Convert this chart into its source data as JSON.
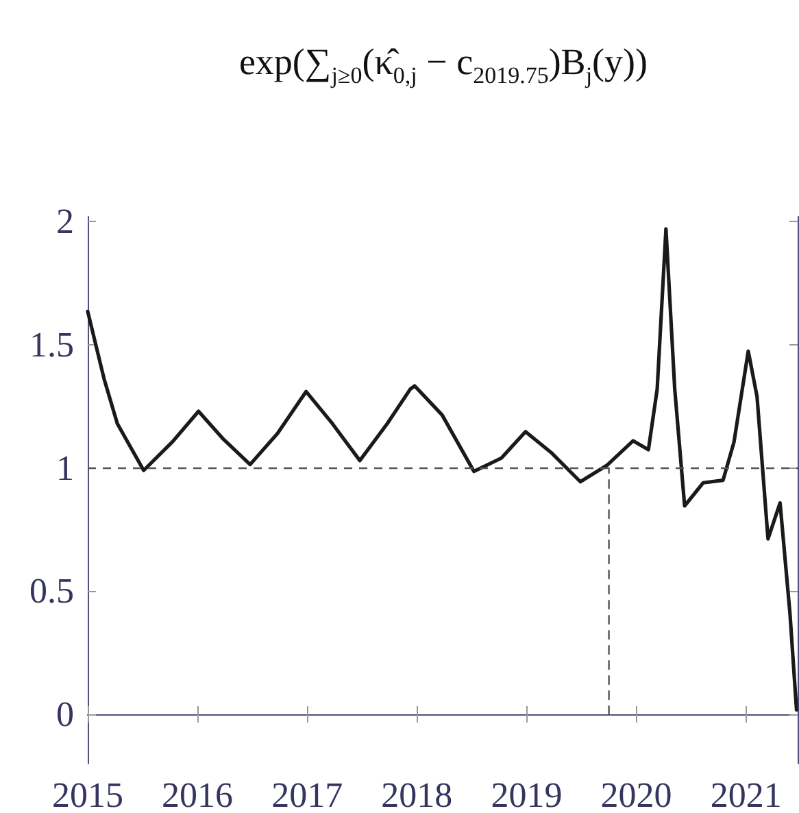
{
  "chart_data": {
    "type": "line",
    "title": "exp(∑$_{j≥0}$(κ̂$_{0,j}$ − c$_{2019.75}$)B$_{j}$(y))",
    "series": [
      {
        "color": "#1a1a1a",
        "x": [
          2015,
          2015.15,
          2015.27,
          2015.51,
          2015.77,
          2016.01,
          2016.23,
          2016.48,
          2016.73,
          2016.99,
          2017.23,
          2017.48,
          2017.73,
          2017.94,
          2017.98,
          2018.23,
          2018.52,
          2018.77,
          2018.99,
          2019.23,
          2019.49,
          2019.73,
          2019.97,
          2020.11,
          2020.19,
          2020.27,
          2020.35,
          2020.44,
          2020.61,
          2020.79,
          2020.89,
          2021.02,
          2021.1,
          2021.2,
          2021.31,
          2021.4,
          2021.46
        ],
        "values": [
          1.635,
          1.36,
          1.18,
          0.99,
          1.105,
          1.23,
          1.12,
          1.014,
          1.14,
          1.31,
          1.18,
          1.03,
          1.18,
          1.32,
          1.333,
          1.215,
          0.986,
          1.04,
          1.147,
          1.06,
          0.944,
          1.01,
          1.11,
          1.074,
          1.32,
          1.97,
          1.32,
          0.846,
          0.94,
          0.95,
          1.105,
          1.474,
          1.29,
          0.712,
          0.858,
          0.41,
          0.018
        ]
      },
      {
        "color": "#555555",
        "line_style": "dashed",
        "x": [
          2019.75,
          2019.75
        ],
        "values": [
          0,
          1
        ]
      }
    ],
    "ref_lines": [
      {
        "axis": "y",
        "value": 1,
        "color": "#555555",
        "line_style": "dashed"
      }
    ],
    "xlim": [
      2015,
      2021.47
    ],
    "ylim": [
      -0.2,
      2.02
    ],
    "xticks": [
      2015,
      2016,
      2017,
      2018,
      2019,
      2020,
      2021
    ],
    "yticks": [
      0,
      0.5,
      1,
      1.5,
      2
    ],
    "grid": false,
    "marker": "none",
    "line_style": "solid"
  }
}
